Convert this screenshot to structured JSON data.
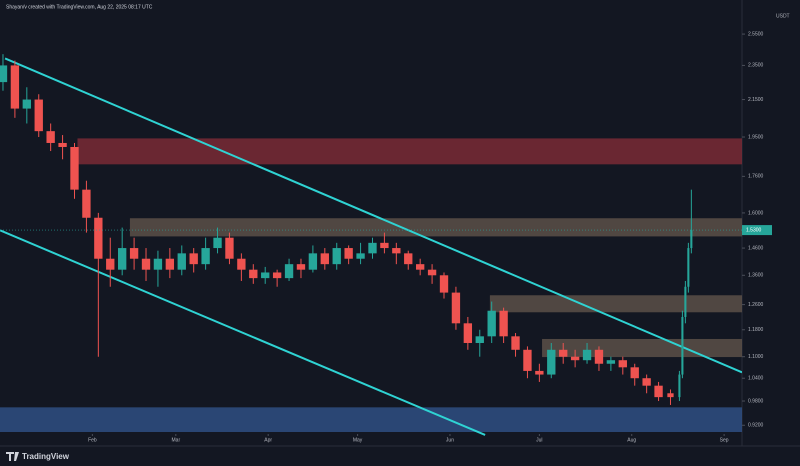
{
  "header": "Shayan/v created with TradingView.com, Aug 22, 2025 08:17 UTC",
  "footer": "TradingView",
  "chart_data": {
    "type": "candlestick",
    "currency": "USDT",
    "log_scale": true,
    "grid": false,
    "up_color": "#26a69a",
    "down_color": "#ef5350",
    "xlim": [
      0,
      249
    ],
    "ylim": [
      0.904,
      2.68
    ],
    "xticks": [
      {
        "value": 31,
        "label": "Feb"
      },
      {
        "value": 59,
        "label": "Mar"
      },
      {
        "value": 90,
        "label": "Apr"
      },
      {
        "value": 120,
        "label": "May"
      },
      {
        "value": 151,
        "label": "Jun"
      },
      {
        "value": 181,
        "label": "Jul"
      },
      {
        "value": 212,
        "label": "Aug"
      },
      {
        "value": 243,
        "label": "Sep"
      }
    ],
    "yticks": [
      {
        "value": 2.55,
        "label": "2.5500"
      },
      {
        "value": 2.35,
        "label": "2.3500"
      },
      {
        "value": 2.15,
        "label": "2.1500"
      },
      {
        "value": 1.95,
        "label": "1.9500"
      },
      {
        "value": 1.76,
        "label": "1.7600"
      },
      {
        "value": 1.6,
        "label": "1.6000"
      },
      {
        "value": 1.46,
        "label": "1.4600"
      },
      {
        "value": 1.36,
        "label": "1.3600"
      },
      {
        "value": 1.26,
        "label": "1.2600"
      },
      {
        "value": 1.18,
        "label": "1.1800"
      },
      {
        "value": 1.1,
        "label": "1.1000"
      },
      {
        "value": 1.04,
        "label": "1.0400"
      },
      {
        "value": 0.98,
        "label": "0.9800"
      },
      {
        "value": 0.92,
        "label": "0.9200"
      }
    ],
    "last_price": {
      "value": 1.53,
      "label": "1.5300"
    },
    "candles": {
      "x": [
        1,
        5,
        9,
        13,
        17,
        21,
        25,
        29,
        33,
        37,
        41,
        45,
        49,
        53,
        57,
        61,
        65,
        69,
        73,
        77,
        81,
        85,
        89,
        93,
        97,
        101,
        105,
        109,
        113,
        117,
        121,
        125,
        129,
        133,
        137,
        141,
        145,
        149,
        153,
        157,
        161,
        165,
        169,
        173,
        177,
        181,
        185,
        189,
        193,
        197,
        201,
        205,
        209,
        213,
        217,
        221,
        225,
        228,
        229,
        230,
        231,
        232
      ],
      "open": [
        2.25,
        2.35,
        2.1,
        2.15,
        1.98,
        1.92,
        1.9,
        1.7,
        1.58,
        1.42,
        1.38,
        1.46,
        1.42,
        1.38,
        1.42,
        1.38,
        1.44,
        1.4,
        1.46,
        1.5,
        1.42,
        1.38,
        1.35,
        1.37,
        1.35,
        1.4,
        1.38,
        1.44,
        1.4,
        1.46,
        1.42,
        1.44,
        1.48,
        1.46,
        1.44,
        1.4,
        1.38,
        1.36,
        1.3,
        1.2,
        1.14,
        1.16,
        1.24,
        1.16,
        1.12,
        1.06,
        1.05,
        1.12,
        1.1,
        1.09,
        1.12,
        1.08,
        1.09,
        1.07,
        1.04,
        1.02,
        1.0,
        0.99,
        1.05,
        1.22,
        1.32,
        1.46
      ],
      "high": [
        2.42,
        2.38,
        2.22,
        2.18,
        2.02,
        1.96,
        1.92,
        1.74,
        1.6,
        1.5,
        1.54,
        1.5,
        1.46,
        1.45,
        1.46,
        1.47,
        1.46,
        1.5,
        1.54,
        1.52,
        1.44,
        1.4,
        1.39,
        1.38,
        1.42,
        1.42,
        1.47,
        1.46,
        1.48,
        1.47,
        1.48,
        1.5,
        1.52,
        1.48,
        1.45,
        1.42,
        1.4,
        1.37,
        1.32,
        1.22,
        1.18,
        1.27,
        1.25,
        1.17,
        1.13,
        1.08,
        1.14,
        1.14,
        1.12,
        1.14,
        1.13,
        1.1,
        1.1,
        1.08,
        1.05,
        1.03,
        1.01,
        1.06,
        1.24,
        1.34,
        1.48,
        1.7
      ],
      "low": [
        2.2,
        2.05,
        2.02,
        1.95,
        1.88,
        1.84,
        1.66,
        1.52,
        1.1,
        1.32,
        1.36,
        1.38,
        1.34,
        1.32,
        1.35,
        1.36,
        1.37,
        1.38,
        1.44,
        1.4,
        1.34,
        1.33,
        1.33,
        1.32,
        1.34,
        1.35,
        1.37,
        1.38,
        1.38,
        1.4,
        1.4,
        1.42,
        1.44,
        1.4,
        1.38,
        1.36,
        1.33,
        1.28,
        1.18,
        1.12,
        1.1,
        1.14,
        1.14,
        1.1,
        1.04,
        1.03,
        1.04,
        1.08,
        1.07,
        1.08,
        1.06,
        1.06,
        1.05,
        1.02,
        1.0,
        0.98,
        0.97,
        0.98,
        1.04,
        1.2,
        1.3,
        1.44
      ],
      "close": [
        2.35,
        2.1,
        2.15,
        1.98,
        1.92,
        1.9,
        1.7,
        1.58,
        1.42,
        1.38,
        1.46,
        1.42,
        1.38,
        1.42,
        1.38,
        1.44,
        1.4,
        1.46,
        1.5,
        1.42,
        1.38,
        1.35,
        1.37,
        1.35,
        1.4,
        1.38,
        1.44,
        1.4,
        1.46,
        1.42,
        1.44,
        1.48,
        1.46,
        1.44,
        1.4,
        1.38,
        1.36,
        1.3,
        1.2,
        1.14,
        1.16,
        1.24,
        1.16,
        1.12,
        1.06,
        1.05,
        1.12,
        1.1,
        1.09,
        1.12,
        1.08,
        1.09,
        1.07,
        1.04,
        1.02,
        0.99,
        0.99,
        1.05,
        1.22,
        1.32,
        1.46,
        1.53
      ]
    },
    "zones": [
      {
        "x0": 26,
        "low": 1.816,
        "high": 1.943,
        "color": "#7a2a35"
      },
      {
        "x0": 43.6,
        "low": 1.505,
        "high": 1.578,
        "color": "#5c5048"
      },
      {
        "x0": 164.4,
        "low": 1.235,
        "high": 1.291,
        "color": "#5c5048"
      },
      {
        "x0": 181.9,
        "low": 1.099,
        "high": 1.152,
        "color": "#5c5048"
      },
      {
        "x0": 0,
        "low": 0.904,
        "high": 0.964,
        "color": "#2f4f82"
      }
    ],
    "trendlines": [
      {
        "color": "#2fd3d3",
        "points": [
          [
            1.7,
            2.393
          ],
          [
            249,
            1.056
          ]
        ]
      },
      {
        "color": "#2fd3d3",
        "points": [
          [
            0,
            1.529
          ],
          [
            162.8,
            0.897
          ]
        ]
      }
    ]
  }
}
